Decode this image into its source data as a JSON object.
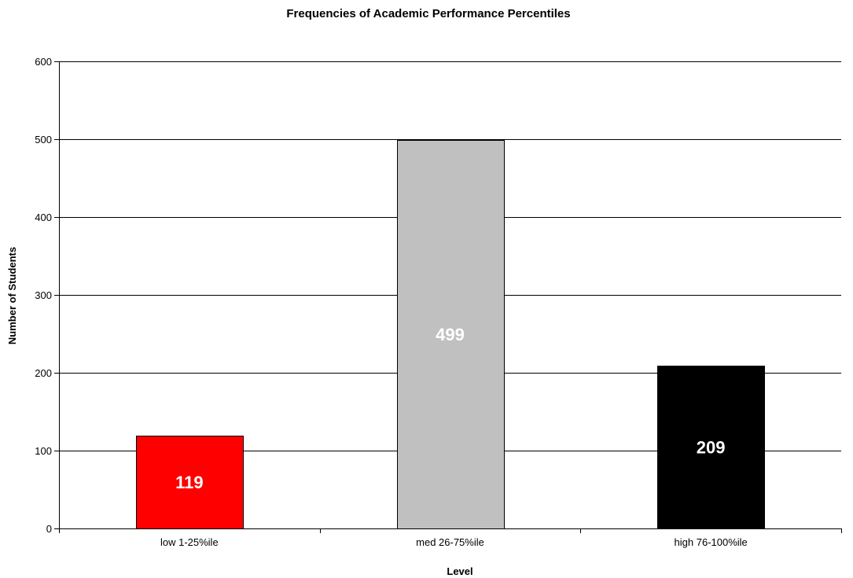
{
  "chart_data": {
    "type": "bar",
    "title": "Frequencies of Academic Performance Percentiles",
    "xlabel": "Level",
    "ylabel": "Number of Students",
    "categories": [
      "low 1-25%ile",
      "med 26-75%ile",
      "high 76-100%ile"
    ],
    "values": [
      119,
      499,
      209
    ],
    "value_labels": [
      "119",
      "499",
      "209"
    ],
    "bar_colors": [
      "#ff0000",
      "#c0c0c0",
      "#000000"
    ],
    "label_colors": [
      "#ffffff",
      "#ffffff",
      "#ffffff"
    ],
    "ylim": [
      0,
      600
    ],
    "yticks": [
      0,
      100,
      200,
      300,
      400,
      500,
      600
    ],
    "ytick_labels": [
      "0",
      "100",
      "200",
      "300",
      "400",
      "500",
      "600"
    ],
    "grid": true,
    "legend": "none"
  }
}
